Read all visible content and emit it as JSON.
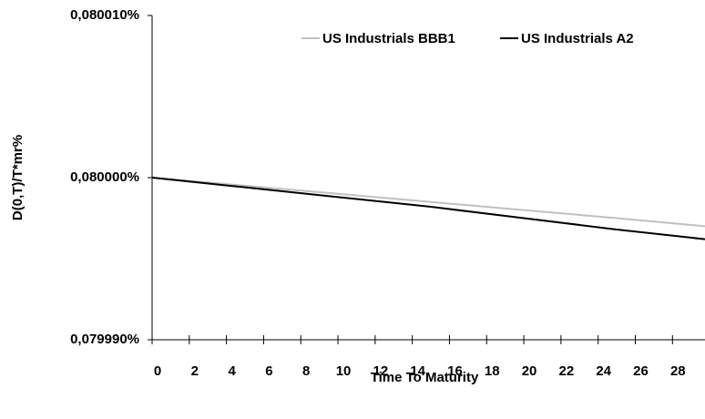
{
  "chart_data": {
    "type": "line",
    "x_label": "Time To Maturity",
    "y_label": "D(0,T)/T*mr%",
    "x": [
      0,
      5,
      10,
      15,
      20,
      25,
      29.75
    ],
    "series": [
      {
        "name": "US Industrials BBB1",
        "color": "#c0c0c0",
        "values": [
          0.08,
          0.0799995,
          0.079999,
          0.0799985,
          0.079998,
          0.0799975,
          0.079997
        ]
      },
      {
        "name": "US Industrials A2",
        "color": "#000000",
        "values": [
          0.08,
          0.0799994,
          0.0799988,
          0.0799982,
          0.0799975,
          0.0799968,
          0.0799962
        ]
      }
    ],
    "xlim": [
      0,
      29.75
    ],
    "xticks": [
      0,
      2,
      4,
      6,
      8,
      10,
      12,
      14,
      16,
      18,
      20,
      22,
      24,
      26,
      28
    ],
    "ylim": [
      0.07999,
      0.08001
    ],
    "yticks": [
      {
        "value": 0.07999,
        "label": "0,079990%"
      },
      {
        "value": 0.08,
        "label": "0,080000%"
      },
      {
        "value": 0.08001,
        "label": "0,080010%"
      }
    ],
    "legend": "top-right"
  }
}
